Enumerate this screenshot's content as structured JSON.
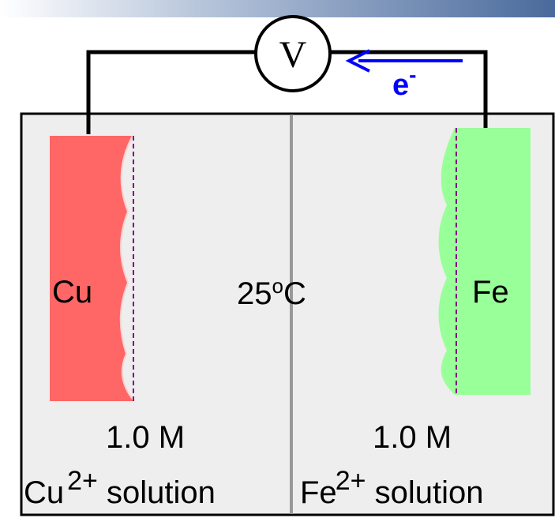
{
  "voltmeter": {
    "symbol": "V"
  },
  "electron": {
    "symbol": "e",
    "charge": "-"
  },
  "temperature": {
    "value": "25",
    "degree": "o",
    "unit": "C"
  },
  "left_cell": {
    "electrode": "Cu",
    "concentration": "1.0 M",
    "ion": "Cu",
    "ion_charge": "2+",
    "solution_word": "solution"
  },
  "right_cell": {
    "electrode": "Fe",
    "concentration": "1.0 M",
    "ion": "Fe",
    "ion_charge": "2+",
    "solution_word": "solution"
  },
  "colors": {
    "header_bar": "#4a6a9c",
    "container_fill": "#eeeeee",
    "divider": "#999999",
    "copper": "#ff6666",
    "iron": "#99ff99",
    "electron_arrow": "#0000ff",
    "dashed_line": "#800080"
  }
}
